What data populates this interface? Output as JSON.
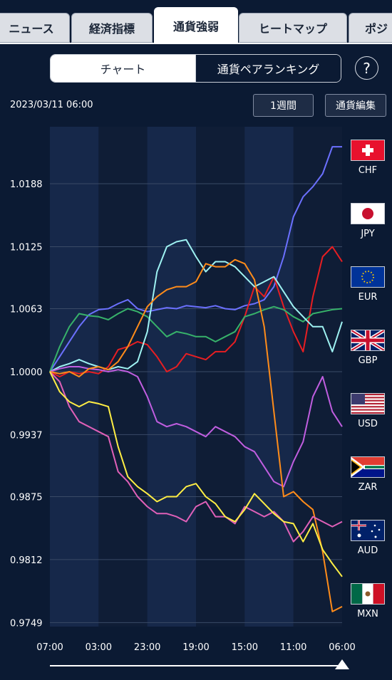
{
  "tabs": [
    {
      "label": "ニュース",
      "active": false
    },
    {
      "label": "経済指標",
      "active": false
    },
    {
      "label": "通貨強弱",
      "active": true
    },
    {
      "label": "ヒートマップ",
      "active": false
    },
    {
      "label": "ポジ",
      "active": false
    }
  ],
  "segment": {
    "chart": "チャート",
    "ranking": "通貨ペアランキング"
  },
  "help_label": "?",
  "timestamp": "2023/03/11 06:00",
  "period_button": "1週間",
  "edit_button": "通貨編集",
  "legend": [
    {
      "code": "CHF",
      "color": "#6b70ff",
      "icon": "chf-flag-icon"
    },
    {
      "code": "JPY",
      "color": "#e81e22",
      "icon": "jpy-flag-icon"
    },
    {
      "code": "EUR",
      "color": "#37b26a",
      "icon": "eur-flag-icon"
    },
    {
      "code": "GBP",
      "color": "#9ef2f2",
      "icon": "gbp-flag-icon"
    },
    {
      "code": "USD",
      "color": "#c05ee0",
      "icon": "usd-flag-icon"
    },
    {
      "code": "ZAR",
      "color": "#ff8c1a",
      "icon": "zar-flag-icon"
    },
    {
      "code": "AUD",
      "color": "#e060b8",
      "icon": "aud-flag-icon"
    },
    {
      "code": "MXN",
      "color": "#ffee44",
      "icon": "mxn-flag-icon"
    }
  ],
  "chart_data": {
    "type": "line",
    "title": "",
    "xlabel": "",
    "ylabel": "",
    "x_ticks": [
      "07:00",
      "03:00",
      "23:00",
      "19:00",
      "15:00",
      "11:00",
      "06:00"
    ],
    "y_ticks": [
      1.0188,
      1.0125,
      1.0063,
      1.0,
      0.9937,
      0.9875,
      0.9812,
      0.9749
    ],
    "ylim": [
      0.9745,
      1.0245
    ],
    "grid": true,
    "x": [
      0,
      1,
      2,
      3,
      4,
      5,
      6,
      7,
      8,
      9,
      10,
      11,
      12,
      13,
      14,
      15,
      16,
      17,
      18,
      19,
      20,
      21,
      22,
      23,
      24,
      25,
      26,
      27,
      28,
      29,
      30
    ],
    "series": [
      {
        "name": "CHF",
        "color": "#6b70ff",
        "values": [
          1.0,
          1.0015,
          1.003,
          1.0045,
          1.0057,
          1.0062,
          1.0063,
          1.0068,
          1.0072,
          1.0063,
          1.006,
          1.0062,
          1.0064,
          1.0063,
          1.0066,
          1.0065,
          1.0064,
          1.0066,
          1.0063,
          1.0062,
          1.0066,
          1.0068,
          1.0072,
          1.0085,
          1.0115,
          1.0155,
          1.0175,
          1.0185,
          1.0198,
          1.0225,
          1.0225
        ]
      },
      {
        "name": "JPY",
        "color": "#e81e22",
        "values": [
          1.0,
          0.9995,
          1.0,
          0.9998,
          1.0,
          0.9998,
          1.0005,
          1.0022,
          1.0025,
          1.003,
          1.0027,
          1.0015,
          1.0,
          1.0005,
          1.0018,
          1.0015,
          1.0012,
          1.002,
          1.002,
          1.003,
          1.0055,
          1.0085,
          1.0075,
          1.0095,
          1.0065,
          1.004,
          1.002,
          1.0075,
          1.0115,
          1.0125,
          1.011
        ]
      },
      {
        "name": "EUR",
        "color": "#37b26a",
        "values": [
          1.0,
          1.0025,
          1.0045,
          1.0058,
          1.0056,
          1.0055,
          1.0052,
          1.0058,
          1.0063,
          1.006,
          1.0055,
          1.0045,
          1.0035,
          1.004,
          1.0038,
          1.0035,
          1.0035,
          1.003,
          1.0035,
          1.004,
          1.0055,
          1.0058,
          1.0062,
          1.0065,
          1.0062,
          1.0055,
          1.005,
          1.0058,
          1.006,
          1.0062,
          1.0063
        ]
      },
      {
        "name": "GBP",
        "color": "#9ef2f2",
        "values": [
          1.0,
          1.0005,
          1.0008,
          1.0012,
          1.0008,
          1.0005,
          1.0002,
          1.0005,
          1.0003,
          1.001,
          1.004,
          1.01,
          1.0125,
          1.013,
          1.0132,
          1.0115,
          1.01,
          1.011,
          1.011,
          1.0105,
          1.0095,
          1.0085,
          1.009,
          1.0095,
          1.008,
          1.0065,
          1.0055,
          1.0045,
          1.0045,
          1.002,
          1.005
        ]
      },
      {
        "name": "USD",
        "color": "#c05ee0",
        "values": [
          1.0,
          1.0003,
          1.0005,
          1.0005,
          1.0003,
          1.0002,
          1.0,
          1.0002,
          1.0,
          0.9995,
          0.9975,
          0.995,
          0.9945,
          0.9948,
          0.9945,
          0.994,
          0.9935,
          0.9945,
          0.994,
          0.9935,
          0.9925,
          0.992,
          0.9905,
          0.989,
          0.9885,
          0.991,
          0.993,
          0.9975,
          0.9995,
          0.996,
          0.9945
        ]
      },
      {
        "name": "ZAR",
        "color": "#ff8c1a",
        "values": [
          1.0,
          0.9998,
          1.0,
          0.9995,
          1.0003,
          1.0005,
          1.0002,
          1.001,
          1.0025,
          1.0045,
          1.0065,
          1.0075,
          1.0082,
          1.0085,
          1.0085,
          1.009,
          1.0108,
          1.0105,
          1.0105,
          1.0112,
          1.0108,
          1.0092,
          1.0045,
          0.996,
          0.9875,
          0.988,
          0.987,
          0.9862,
          0.982,
          0.976,
          0.9765
        ]
      },
      {
        "name": "AUD",
        "color": "#e060b8",
        "values": [
          1.0,
          0.999,
          0.9965,
          0.995,
          0.9945,
          0.994,
          0.9935,
          0.99,
          0.989,
          0.9875,
          0.9865,
          0.9858,
          0.9858,
          0.9855,
          0.985,
          0.9865,
          0.987,
          0.9855,
          0.9855,
          0.9848,
          0.9865,
          0.986,
          0.9855,
          0.986,
          0.985,
          0.983,
          0.984,
          0.9855,
          0.985,
          0.9845,
          0.985
        ]
      },
      {
        "name": "MXN",
        "color": "#ffee44",
        "values": [
          1.0,
          0.998,
          0.997,
          0.9965,
          0.997,
          0.9968,
          0.9965,
          0.9925,
          0.9895,
          0.9885,
          0.9878,
          0.987,
          0.9875,
          0.9875,
          0.9885,
          0.9888,
          0.9875,
          0.9868,
          0.9855,
          0.985,
          0.9862,
          0.9878,
          0.9868,
          0.9858,
          0.985,
          0.9848,
          0.983,
          0.9848,
          0.9822,
          0.9808,
          0.9795
        ]
      }
    ]
  }
}
